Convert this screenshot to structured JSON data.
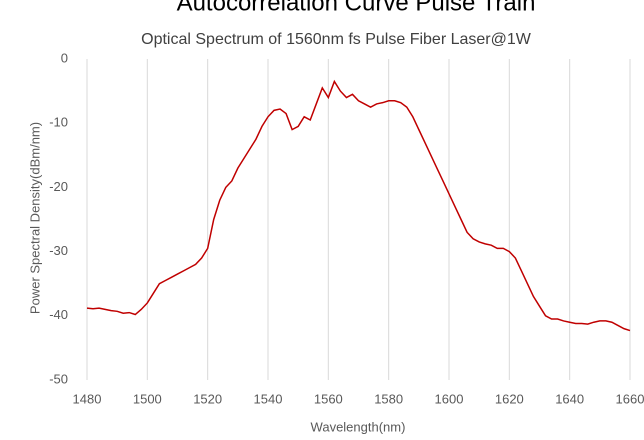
{
  "header_fragment": "Autocorrelation Curve Pulse Train",
  "chart_data": {
    "type": "line",
    "title": "Optical Spectrum of 1560nm fs Pulse Fiber Laser@1W",
    "x_label": "Wavelength(nm)",
    "y_label": "Power Spectral Density(dBm/nm)",
    "xlim": [
      1480,
      1660
    ],
    "xticks": [
      1480,
      1500,
      1520,
      1540,
      1560,
      1580,
      1600,
      1620,
      1640,
      1660
    ],
    "ylim": [
      -50,
      0
    ],
    "yticks": [
      0,
      -10,
      -20,
      -30,
      -40,
      -50
    ],
    "grid": "x",
    "series": [
      {
        "color": "#c00000",
        "x": [
          1480,
          1482,
          1484,
          1486,
          1488,
          1490,
          1492,
          1494,
          1496,
          1498,
          1500,
          1502,
          1504,
          1506,
          1508,
          1510,
          1512,
          1514,
          1516,
          1518,
          1520,
          1522,
          1524,
          1526,
          1528,
          1530,
          1532,
          1534,
          1536,
          1538,
          1540,
          1542,
          1544,
          1546,
          1548,
          1550,
          1552,
          1554,
          1556,
          1558,
          1560,
          1562,
          1564,
          1566,
          1568,
          1570,
          1572,
          1574,
          1576,
          1578,
          1580,
          1582,
          1584,
          1586,
          1588,
          1590,
          1592,
          1594,
          1596,
          1598,
          1600,
          1602,
          1604,
          1606,
          1608,
          1610,
          1612,
          1614,
          1616,
          1618,
          1620,
          1622,
          1624,
          1626,
          1628,
          1630,
          1632,
          1634,
          1636,
          1638,
          1640,
          1642,
          1644,
          1646,
          1648,
          1650,
          1652,
          1654,
          1656,
          1658,
          1660
        ],
        "values": [
          -38.8,
          -38.9,
          -38.8,
          -39,
          -39.2,
          -39.3,
          -39.6,
          -39.5,
          -39.8,
          -39,
          -38,
          -36.5,
          -35,
          -34.5,
          -34,
          -33.5,
          -33,
          -32.5,
          -32,
          -31,
          -29.5,
          -25,
          -22,
          -20,
          -19,
          -17,
          -15.5,
          -14,
          -12.5,
          -10.5,
          -9,
          -8,
          -7.8,
          -8.5,
          -11,
          -10.5,
          -9,
          -9.5,
          -7,
          -4.5,
          -6,
          -3.5,
          -5,
          -6,
          -5.5,
          -6.5,
          -7,
          -7.5,
          -7,
          -6.8,
          -6.5,
          -6.5,
          -6.8,
          -7.5,
          -9,
          -11,
          -13,
          -15,
          -17,
          -19,
          -21,
          -23,
          -25,
          -27,
          -28,
          -28.5,
          -28.8,
          -29,
          -29.5,
          -29.5,
          -30,
          -31,
          -33,
          -35,
          -37,
          -38.5,
          -40,
          -40.5,
          -40.5,
          -40.8,
          -41,
          -41.2,
          -41.2,
          -41.3,
          -41,
          -40.8,
          -40.8,
          -41,
          -41.5,
          -42,
          -42.3
        ]
      }
    ]
  }
}
